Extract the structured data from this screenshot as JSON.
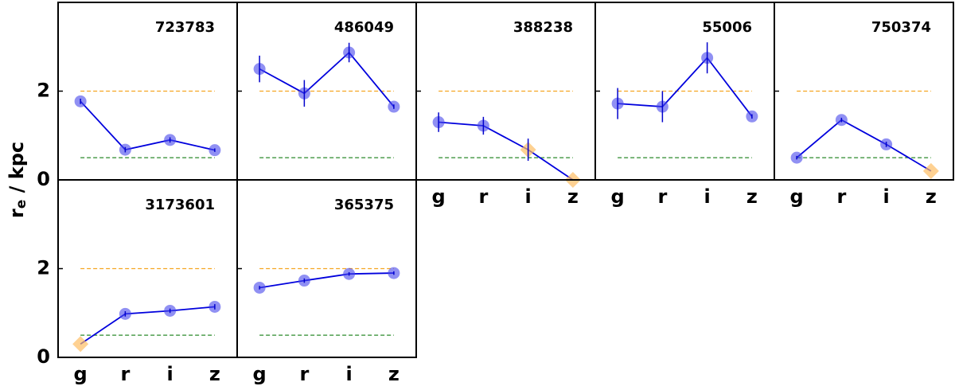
{
  "ylabel": {
    "main": "r",
    "subscript": "e",
    "rest": " / kpc"
  },
  "chart_data": [
    {
      "type": "line",
      "title": "723783",
      "categories": [
        "g",
        "r",
        "i",
        "z"
      ],
      "values": [
        1.77,
        0.68,
        0.9,
        0.67
      ],
      "errors": [
        0.06,
        0.06,
        0.06,
        0.04
      ],
      "markers": [
        "circle",
        "circle",
        "circle",
        "circle"
      ],
      "ylim": [
        0,
        4
      ],
      "yticks": [
        0,
        2
      ],
      "reference_lines": [
        {
          "value": 2,
          "color": "#f5a623"
        },
        {
          "value": 0.5,
          "color": "#2a8a2a"
        }
      ]
    },
    {
      "type": "line",
      "title": "486049",
      "categories": [
        "g",
        "r",
        "i",
        "z"
      ],
      "values": [
        2.5,
        1.95,
        2.87,
        1.65
      ],
      "errors": [
        0.3,
        0.3,
        0.22,
        0.05
      ],
      "markers": [
        "circle",
        "circle",
        "circle",
        "circle"
      ],
      "ylim": [
        0,
        4
      ],
      "yticks": [
        0,
        2
      ],
      "reference_lines": [
        {
          "value": 2,
          "color": "#f5a623"
        },
        {
          "value": 0.5,
          "color": "#2a8a2a"
        }
      ]
    },
    {
      "type": "line",
      "title": "388238",
      "categories": [
        "g",
        "r",
        "i",
        "z"
      ],
      "values": [
        1.3,
        1.22,
        0.68,
        0.0
      ],
      "errors": [
        0.22,
        0.2,
        0.25,
        0.0
      ],
      "markers": [
        "circle",
        "circle",
        "diamond",
        "diamond"
      ],
      "ylim": [
        0,
        4
      ],
      "yticks": [
        0,
        2
      ],
      "reference_lines": [
        {
          "value": 2,
          "color": "#f5a623"
        },
        {
          "value": 0.5,
          "color": "#2a8a2a"
        }
      ]
    },
    {
      "type": "line",
      "title": "55006",
      "categories": [
        "g",
        "r",
        "i",
        "z"
      ],
      "values": [
        1.72,
        1.65,
        2.75,
        1.43
      ],
      "errors": [
        0.35,
        0.35,
        0.35,
        0.05
      ],
      "markers": [
        "circle",
        "circle",
        "circle",
        "circle"
      ],
      "ylim": [
        0,
        4
      ],
      "yticks": [
        0,
        2
      ],
      "reference_lines": [
        {
          "value": 2,
          "color": "#f5a623"
        },
        {
          "value": 0.5,
          "color": "#2a8a2a"
        }
      ]
    },
    {
      "type": "line",
      "title": "750374",
      "categories": [
        "g",
        "r",
        "i",
        "z"
      ],
      "values": [
        0.5,
        1.35,
        0.8,
        0.2
      ],
      "errors": [
        0.04,
        0.05,
        0.06,
        0.0
      ],
      "markers": [
        "circle",
        "circle",
        "circle",
        "diamond"
      ],
      "ylim": [
        0,
        4
      ],
      "yticks": [
        0,
        2
      ],
      "reference_lines": [
        {
          "value": 2,
          "color": "#f5a623"
        },
        {
          "value": 0.5,
          "color": "#2a8a2a"
        }
      ]
    },
    {
      "type": "line",
      "title": "3173601",
      "categories": [
        "g",
        "r",
        "i",
        "z"
      ],
      "values": [
        0.3,
        0.98,
        1.05,
        1.14
      ],
      "errors": [
        0.0,
        0.06,
        0.05,
        0.06
      ],
      "markers": [
        "diamond",
        "circle",
        "circle",
        "circle"
      ],
      "ylim": [
        0,
        4
      ],
      "yticks": [
        0,
        2
      ],
      "reference_lines": [
        {
          "value": 2,
          "color": "#f5a623"
        },
        {
          "value": 0.5,
          "color": "#2a8a2a"
        }
      ]
    },
    {
      "type": "line",
      "title": "365375",
      "categories": [
        "g",
        "r",
        "i",
        "z"
      ],
      "values": [
        1.57,
        1.73,
        1.88,
        1.9
      ],
      "errors": [
        0.04,
        0.05,
        0.04,
        0.04
      ],
      "markers": [
        "circle",
        "circle",
        "circle",
        "circle"
      ],
      "ylim": [
        0,
        4
      ],
      "yticks": [
        0,
        2
      ],
      "reference_lines": [
        {
          "value": 2,
          "color": "#f5a623"
        },
        {
          "value": 0.5,
          "color": "#2a8a2a"
        }
      ]
    }
  ]
}
